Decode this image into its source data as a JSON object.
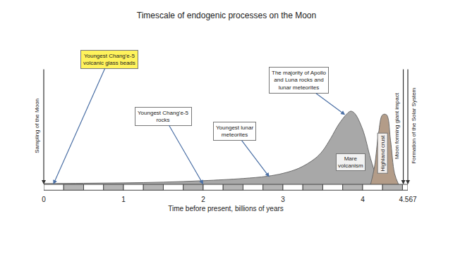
{
  "chart_data": {
    "type": "area",
    "title": "Timescale of endogenic processes on the Moon",
    "x_label": "Time before present, billions of years",
    "xlim": [
      0,
      4.567
    ],
    "xticks": [
      0,
      1,
      2,
      3,
      4,
      4.567
    ],
    "ylim": [
      0,
      2
    ],
    "tick_labels": "x",
    "grid": false,
    "series": [
      {
        "name": "Mare volcanism",
        "color": "#a8a8a8",
        "x": [
          0,
          0.5,
          1,
          1.5,
          2,
          2.5,
          2.8,
          3,
          3.2,
          3.4,
          3.5,
          3.6,
          3.7,
          3.8,
          3.85,
          3.9,
          4.0,
          4.1,
          4.2
        ],
        "values": [
          0.01,
          0.015,
          0.02,
          0.03,
          0.05,
          0.08,
          0.11,
          0.15,
          0.22,
          0.35,
          0.46,
          0.63,
          0.82,
          0.96,
          1.0,
          0.97,
          0.75,
          0.35,
          0
        ]
      },
      {
        "name": "Highland crust",
        "color": "#b39c88",
        "x": [
          4.1,
          4.15,
          4.2,
          4.25,
          4.3,
          4.35,
          4.4,
          4.45
        ],
        "values": [
          0,
          0.25,
          0.7,
          0.95,
          0.95,
          0.6,
          0.15,
          0
        ]
      }
    ],
    "annotations": [
      {
        "text": "Youngest Chang'e-5 volcanic glass beads",
        "x": 0.12,
        "y": 0,
        "color": "#fff35c"
      },
      {
        "text": "Youngest Chang'e-5 rocks",
        "x": 2.0,
        "y": 0,
        "color": "#ffffff"
      },
      {
        "text": "Youngest lunar meteorites",
        "x": 2.83,
        "y": 0.1,
        "color": "#ffffff"
      },
      {
        "text": "The majority of Apollo and Luna rocks and lunar meteorites",
        "x": 3.78,
        "y": 0.95,
        "color": "#ffffff"
      }
    ],
    "events": [
      {
        "text": "Sampling of the Moon",
        "x": 0
      },
      {
        "text": "Moon forming giant impact",
        "x": 4.51
      },
      {
        "text": "Formation of the Solar System",
        "x": 4.567
      }
    ]
  }
}
